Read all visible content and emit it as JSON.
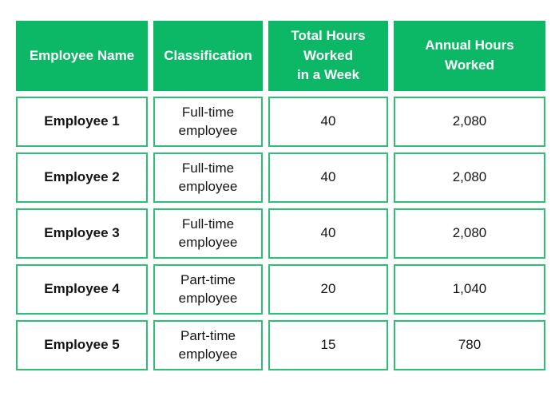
{
  "colors": {
    "header_bg": "#0CB766",
    "cell_border": "#2DBF73",
    "header_text": "#FFFFFF",
    "body_text": "#151515",
    "page_bg": "#FFFFFF"
  },
  "header": {
    "cells": [
      {
        "lines": [
          "Employee Name"
        ]
      },
      {
        "lines": [
          "Classification"
        ]
      },
      {
        "lines": [
          "Total Hours",
          "Worked",
          "in a Week"
        ]
      },
      {
        "lines": [
          "Annual Hours",
          "Worked"
        ]
      }
    ]
  },
  "rows": [
    {
      "name": "Employee 1",
      "classification_lines": [
        "Full-time",
        "employee"
      ],
      "weekly_hours": "40",
      "annual_hours": "2,080"
    },
    {
      "name": "Employee 2",
      "classification_lines": [
        "Full-time",
        "employee"
      ],
      "weekly_hours": "40",
      "annual_hours": "2,080"
    },
    {
      "name": "Employee 3",
      "classification_lines": [
        "Full-time",
        "employee"
      ],
      "weekly_hours": "40",
      "annual_hours": "2,080"
    },
    {
      "name": "Employee 4",
      "classification_lines": [
        "Part-time",
        "employee"
      ],
      "weekly_hours": "20",
      "annual_hours": "1,040"
    },
    {
      "name": "Employee 5",
      "classification_lines": [
        "Part-time",
        "employee"
      ],
      "weekly_hours": "15",
      "annual_hours": "780"
    }
  ],
  "chart_data": {
    "type": "table",
    "title": "",
    "columns": [
      "Employee Name",
      "Classification",
      "Total Hours Worked in a Week",
      "Annual Hours Worked"
    ],
    "rows": [
      [
        "Employee 1",
        "Full-time employee",
        40,
        2080
      ],
      [
        "Employee 2",
        "Full-time employee",
        40,
        2080
      ],
      [
        "Employee 3",
        "Full-time employee",
        40,
        2080
      ],
      [
        "Employee 4",
        "Part-time employee",
        20,
        1040
      ],
      [
        "Employee 5",
        "Part-time employee",
        15,
        780
      ]
    ]
  }
}
